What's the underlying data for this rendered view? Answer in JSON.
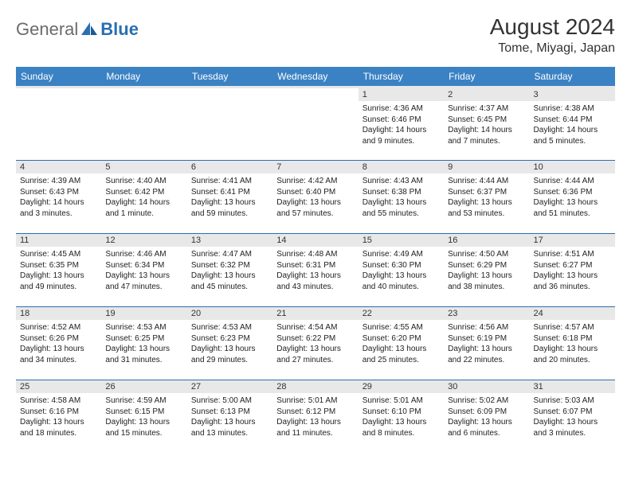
{
  "brand": {
    "part1": "General",
    "part2": "Blue"
  },
  "title": "August 2024",
  "location": "Tome, Miyagi, Japan",
  "colors": {
    "header_bg": "#3b82c4",
    "header_text": "#ffffff",
    "row_border": "#2a6fb0",
    "daybar_bg": "#e8e8e8",
    "logo_gray": "#6b6b6b",
    "logo_blue": "#2a6fb0",
    "page_bg": "#ffffff",
    "text": "#222222"
  },
  "day_labels": [
    "Sunday",
    "Monday",
    "Tuesday",
    "Wednesday",
    "Thursday",
    "Friday",
    "Saturday"
  ],
  "weeks": [
    [
      null,
      null,
      null,
      null,
      {
        "num": "1",
        "sunrise": "4:36 AM",
        "sunset": "6:46 PM",
        "daylight": "14 hours and 9 minutes."
      },
      {
        "num": "2",
        "sunrise": "4:37 AM",
        "sunset": "6:45 PM",
        "daylight": "14 hours and 7 minutes."
      },
      {
        "num": "3",
        "sunrise": "4:38 AM",
        "sunset": "6:44 PM",
        "daylight": "14 hours and 5 minutes."
      }
    ],
    [
      {
        "num": "4",
        "sunrise": "4:39 AM",
        "sunset": "6:43 PM",
        "daylight": "14 hours and 3 minutes."
      },
      {
        "num": "5",
        "sunrise": "4:40 AM",
        "sunset": "6:42 PM",
        "daylight": "14 hours and 1 minute."
      },
      {
        "num": "6",
        "sunrise": "4:41 AM",
        "sunset": "6:41 PM",
        "daylight": "13 hours and 59 minutes."
      },
      {
        "num": "7",
        "sunrise": "4:42 AM",
        "sunset": "6:40 PM",
        "daylight": "13 hours and 57 minutes."
      },
      {
        "num": "8",
        "sunrise": "4:43 AM",
        "sunset": "6:38 PM",
        "daylight": "13 hours and 55 minutes."
      },
      {
        "num": "9",
        "sunrise": "4:44 AM",
        "sunset": "6:37 PM",
        "daylight": "13 hours and 53 minutes."
      },
      {
        "num": "10",
        "sunrise": "4:44 AM",
        "sunset": "6:36 PM",
        "daylight": "13 hours and 51 minutes."
      }
    ],
    [
      {
        "num": "11",
        "sunrise": "4:45 AM",
        "sunset": "6:35 PM",
        "daylight": "13 hours and 49 minutes."
      },
      {
        "num": "12",
        "sunrise": "4:46 AM",
        "sunset": "6:34 PM",
        "daylight": "13 hours and 47 minutes."
      },
      {
        "num": "13",
        "sunrise": "4:47 AM",
        "sunset": "6:32 PM",
        "daylight": "13 hours and 45 minutes."
      },
      {
        "num": "14",
        "sunrise": "4:48 AM",
        "sunset": "6:31 PM",
        "daylight": "13 hours and 43 minutes."
      },
      {
        "num": "15",
        "sunrise": "4:49 AM",
        "sunset": "6:30 PM",
        "daylight": "13 hours and 40 minutes."
      },
      {
        "num": "16",
        "sunrise": "4:50 AM",
        "sunset": "6:29 PM",
        "daylight": "13 hours and 38 minutes."
      },
      {
        "num": "17",
        "sunrise": "4:51 AM",
        "sunset": "6:27 PM",
        "daylight": "13 hours and 36 minutes."
      }
    ],
    [
      {
        "num": "18",
        "sunrise": "4:52 AM",
        "sunset": "6:26 PM",
        "daylight": "13 hours and 34 minutes."
      },
      {
        "num": "19",
        "sunrise": "4:53 AM",
        "sunset": "6:25 PM",
        "daylight": "13 hours and 31 minutes."
      },
      {
        "num": "20",
        "sunrise": "4:53 AM",
        "sunset": "6:23 PM",
        "daylight": "13 hours and 29 minutes."
      },
      {
        "num": "21",
        "sunrise": "4:54 AM",
        "sunset": "6:22 PM",
        "daylight": "13 hours and 27 minutes."
      },
      {
        "num": "22",
        "sunrise": "4:55 AM",
        "sunset": "6:20 PM",
        "daylight": "13 hours and 25 minutes."
      },
      {
        "num": "23",
        "sunrise": "4:56 AM",
        "sunset": "6:19 PM",
        "daylight": "13 hours and 22 minutes."
      },
      {
        "num": "24",
        "sunrise": "4:57 AM",
        "sunset": "6:18 PM",
        "daylight": "13 hours and 20 minutes."
      }
    ],
    [
      {
        "num": "25",
        "sunrise": "4:58 AM",
        "sunset": "6:16 PM",
        "daylight": "13 hours and 18 minutes."
      },
      {
        "num": "26",
        "sunrise": "4:59 AM",
        "sunset": "6:15 PM",
        "daylight": "13 hours and 15 minutes."
      },
      {
        "num": "27",
        "sunrise": "5:00 AM",
        "sunset": "6:13 PM",
        "daylight": "13 hours and 13 minutes."
      },
      {
        "num": "28",
        "sunrise": "5:01 AM",
        "sunset": "6:12 PM",
        "daylight": "13 hours and 11 minutes."
      },
      {
        "num": "29",
        "sunrise": "5:01 AM",
        "sunset": "6:10 PM",
        "daylight": "13 hours and 8 minutes."
      },
      {
        "num": "30",
        "sunrise": "5:02 AM",
        "sunset": "6:09 PM",
        "daylight": "13 hours and 6 minutes."
      },
      {
        "num": "31",
        "sunrise": "5:03 AM",
        "sunset": "6:07 PM",
        "daylight": "13 hours and 3 minutes."
      }
    ]
  ],
  "labels": {
    "sunrise": "Sunrise:",
    "sunset": "Sunset:",
    "daylight": "Daylight:"
  }
}
